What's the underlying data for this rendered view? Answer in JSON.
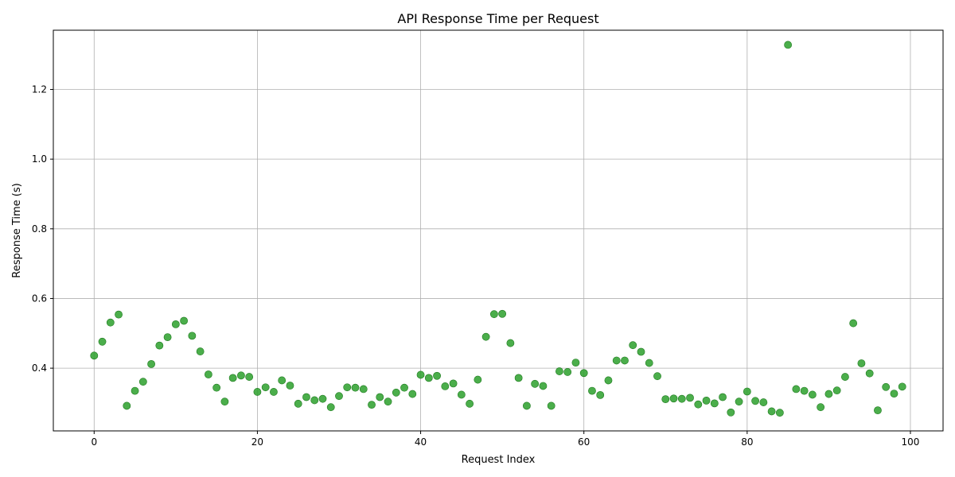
{
  "chart_data": {
    "type": "scatter",
    "title": "API Response Time per Request",
    "xlabel": "Request Index",
    "ylabel": "Response Time (s)",
    "xlim": [
      -5,
      104
    ],
    "ylim": [
      0.22,
      1.37
    ],
    "x_ticks": [
      0,
      20,
      40,
      60,
      80,
      100
    ],
    "y_ticks": [
      0.4,
      0.6,
      0.8,
      1.0,
      1.2
    ],
    "y_tick_labels": [
      "0.4",
      "0.6",
      "0.8",
      "1.0",
      "1.2"
    ],
    "grid": true,
    "marker_color": "#2ca02c",
    "x": [
      0,
      1,
      2,
      3,
      4,
      5,
      6,
      7,
      8,
      9,
      10,
      11,
      12,
      13,
      14,
      15,
      16,
      17,
      18,
      19,
      20,
      21,
      22,
      23,
      24,
      25,
      26,
      27,
      28,
      29,
      30,
      31,
      32,
      33,
      34,
      35,
      36,
      37,
      38,
      39,
      40,
      41,
      42,
      43,
      44,
      45,
      46,
      47,
      48,
      49,
      50,
      51,
      52,
      53,
      54,
      55,
      56,
      57,
      58,
      59,
      60,
      61,
      62,
      63,
      64,
      65,
      66,
      67,
      68,
      69,
      70,
      71,
      72,
      73,
      74,
      75,
      76,
      77,
      78,
      79,
      80,
      81,
      82,
      83,
      84,
      85,
      86,
      87,
      88,
      89,
      90,
      91,
      92,
      93,
      94,
      95,
      96,
      97,
      98,
      99
    ],
    "y": [
      0.436,
      0.476,
      0.531,
      0.554,
      0.292,
      0.335,
      0.361,
      0.412,
      0.465,
      0.489,
      0.526,
      0.536,
      0.493,
      0.448,
      0.382,
      0.344,
      0.304,
      0.372,
      0.379,
      0.375,
      0.332,
      0.345,
      0.332,
      0.365,
      0.35,
      0.298,
      0.317,
      0.308,
      0.312,
      0.288,
      0.32,
      0.345,
      0.344,
      0.34,
      0.295,
      0.317,
      0.304,
      0.33,
      0.344,
      0.326,
      0.381,
      0.372,
      0.378,
      0.348,
      0.356,
      0.324,
      0.298,
      0.367,
      0.49,
      0.555,
      0.556,
      0.472,
      0.372,
      0.292,
      0.355,
      0.349,
      0.292,
      0.391,
      0.389,
      0.416,
      0.386,
      0.335,
      0.323,
      0.365,
      0.422,
      0.422,
      0.466,
      0.447,
      0.415,
      0.377,
      0.311,
      0.313,
      0.312,
      0.315,
      0.296,
      0.307,
      0.299,
      0.317,
      0.273,
      0.304,
      0.333,
      0.306,
      0.302,
      0.276,
      0.272,
      1.328,
      0.34,
      0.335,
      0.324,
      0.288,
      0.326,
      0.336,
      0.375,
      0.529,
      0.414,
      0.385,
      0.279,
      0.346,
      0.327,
      0.347
    ]
  }
}
